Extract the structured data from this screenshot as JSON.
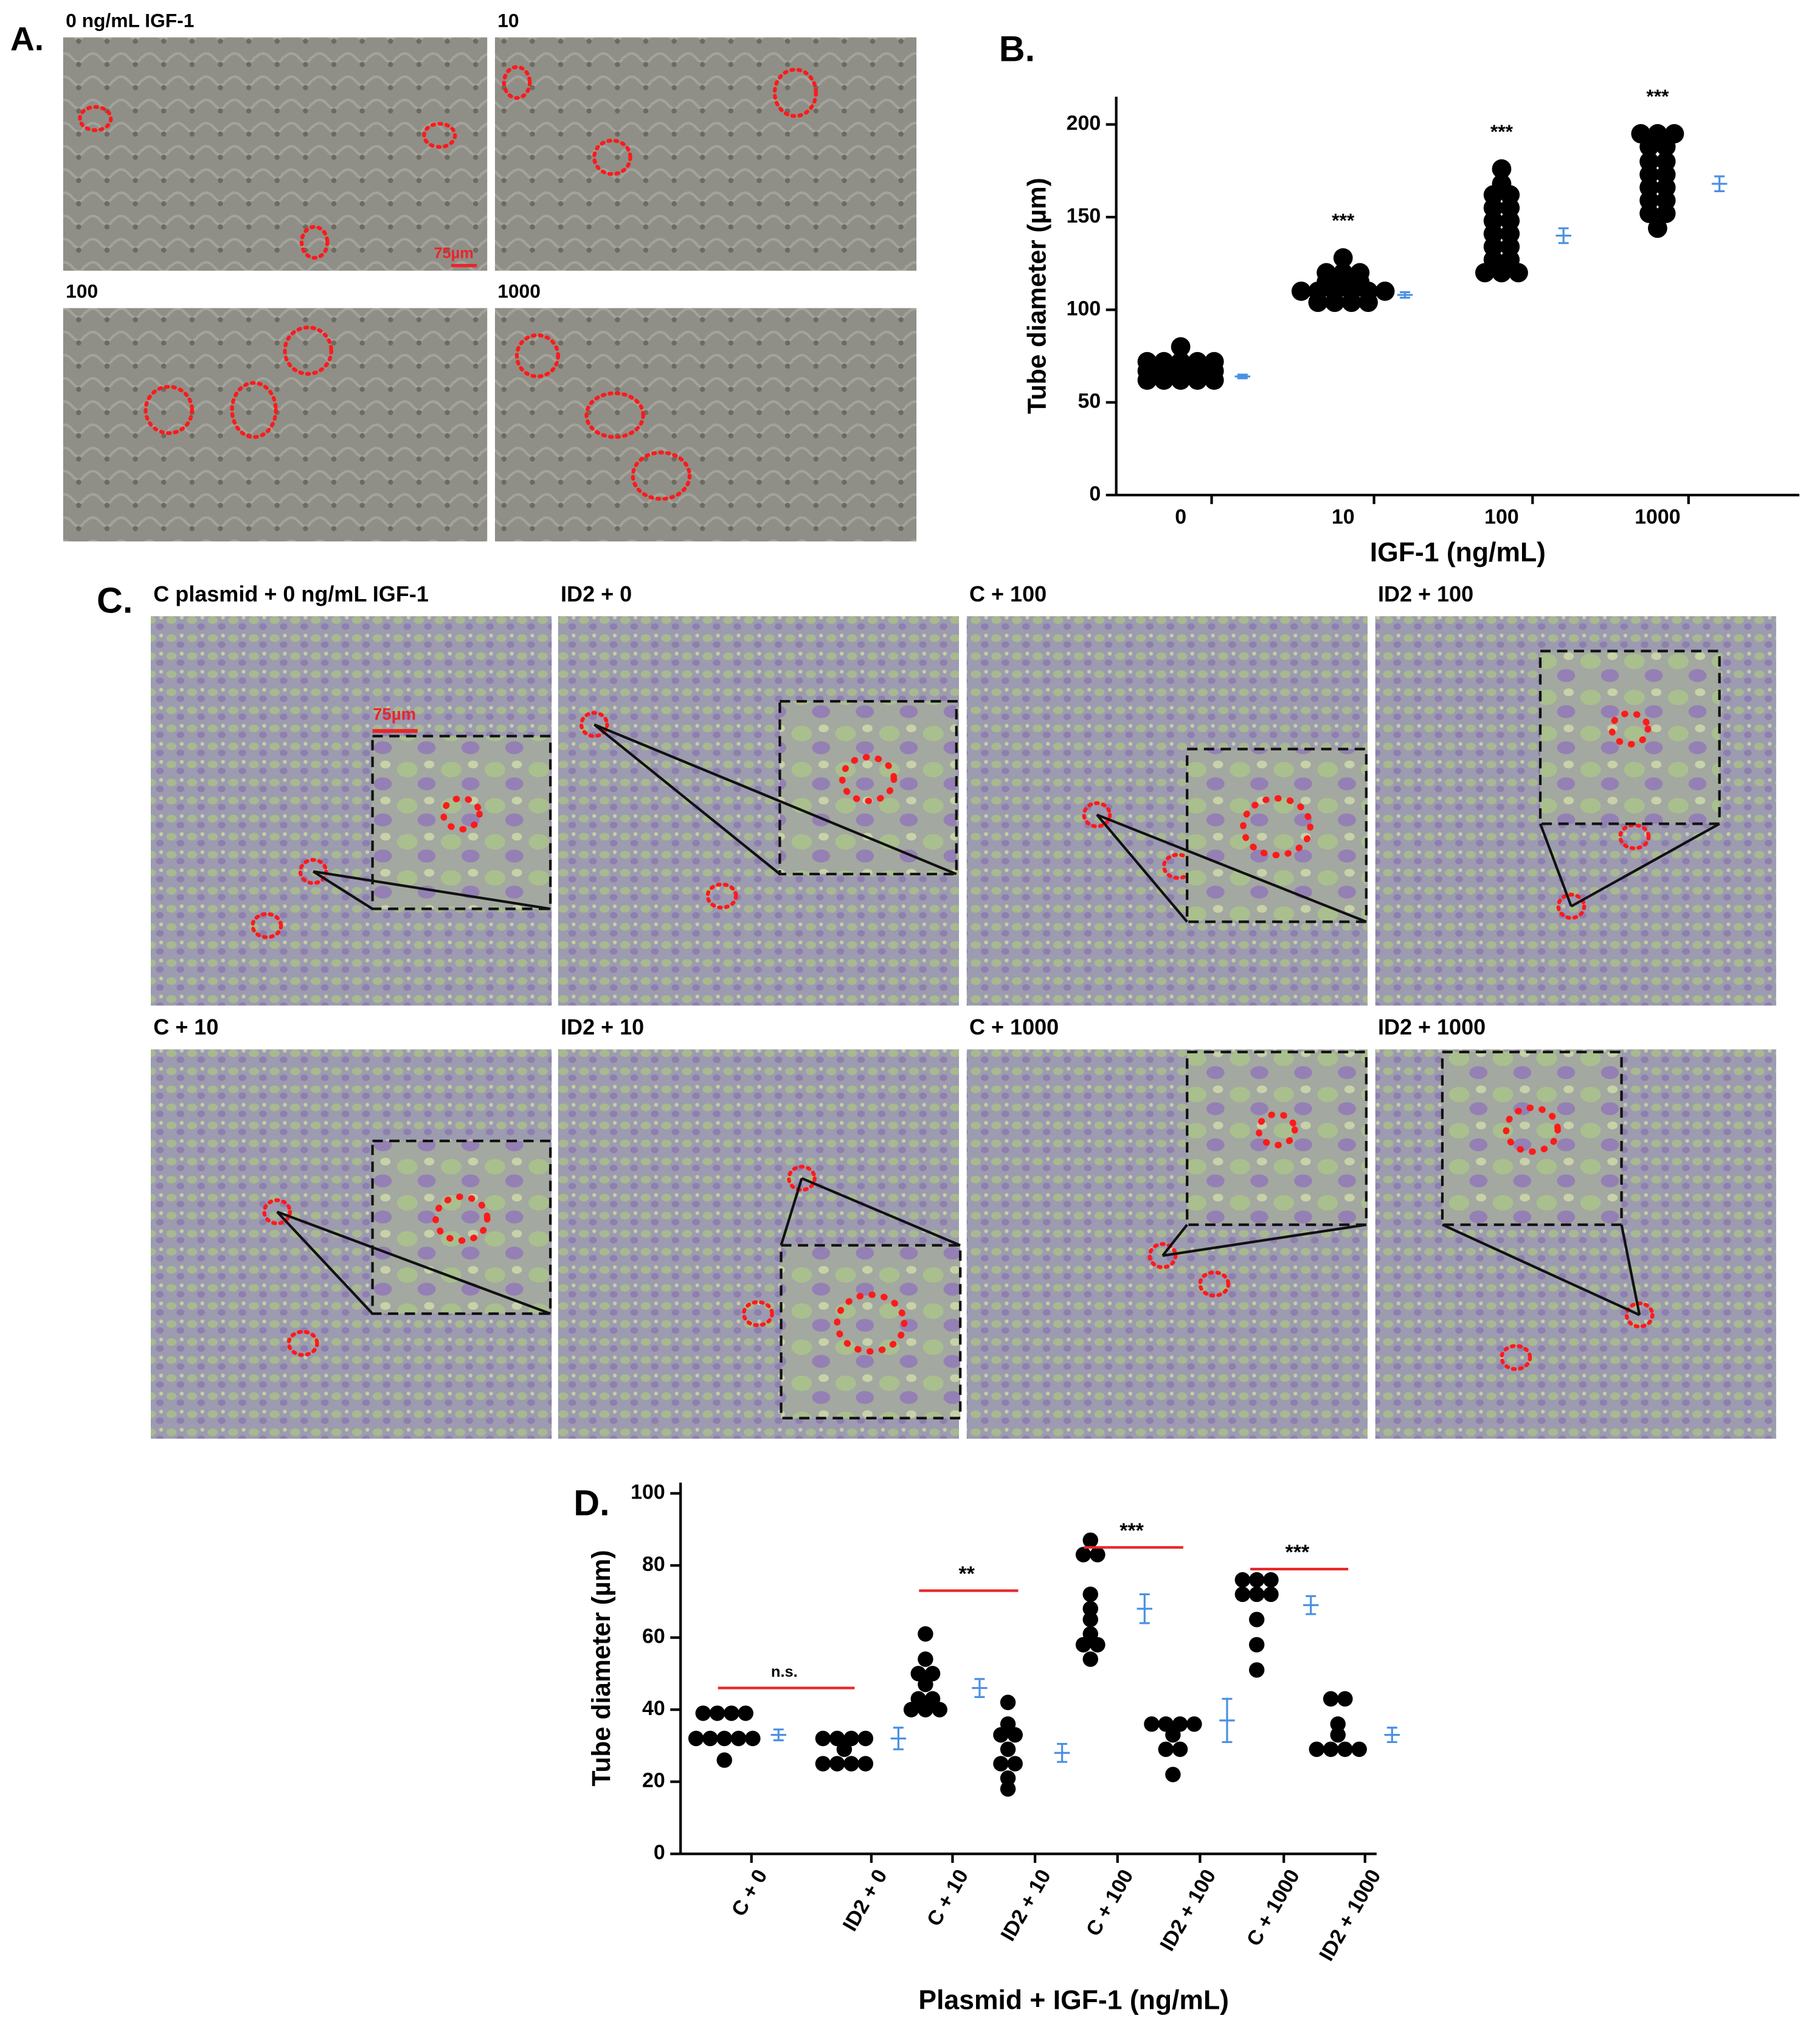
{
  "panel_a": {
    "label": "A.",
    "titles": [
      "0 ng/mL IGF-1",
      "10",
      "100",
      "1000"
    ],
    "scale_bar": "75µm"
  },
  "panel_c": {
    "label": "C.",
    "titles": [
      "C plasmid + 0 ng/mL IGF-1",
      "ID2 + 0",
      "C + 100",
      "ID2 + 100",
      "C + 10",
      "ID2 + 10",
      "C + 1000",
      "ID2 + 1000"
    ],
    "scale_bar": "75µm"
  },
  "chart_data": [
    {
      "type": "strip",
      "panel": "B.",
      "y_label": "Tube diameter (µm)",
      "x_label": "IGF-1 (ng/mL)",
      "categories": [
        "0",
        "10",
        "100",
        "1000"
      ],
      "points": [
        [
          80,
          72,
          72,
          72,
          72,
          72,
          67,
          67,
          67,
          67,
          67,
          62,
          62,
          62,
          62,
          62
        ],
        [
          128,
          120,
          120,
          120,
          115,
          115,
          115,
          110,
          110,
          110,
          110,
          110,
          110,
          104,
          104,
          104,
          104
        ],
        [
          176,
          168,
          162,
          162,
          155,
          155,
          148,
          148,
          141,
          141,
          134,
          134,
          127,
          127,
          120,
          120,
          120
        ],
        [
          195,
          195,
          195,
          188,
          188,
          180,
          180,
          173,
          173,
          166,
          166,
          159,
          159,
          152,
          152,
          144
        ]
      ],
      "color": "#000000",
      "means": [
        64,
        108,
        140,
        168
      ],
      "errors": [
        1,
        1.5,
        4,
        4
      ],
      "mean_color": "#4a90e2",
      "annotations": [
        null,
        "***",
        "***",
        "***"
      ],
      "annotation_color": "#e8262a",
      "ylim": [
        0,
        215
      ],
      "yticks": [
        0,
        50,
        100,
        150,
        200
      ]
    },
    {
      "type": "strip",
      "panel": "D.",
      "y_label": "Tube diameter (µm)",
      "x_label": "Plasmid + IGF-1 (ng/mL)",
      "categories": [
        "C + 0",
        "ID2 + 0",
        "C + 10",
        "ID2 + 10",
        "C + 100",
        "ID2 + 100",
        "C + 1000",
        "ID2 + 1000"
      ],
      "points": [
        [
          39,
          39,
          39,
          39,
          32,
          32,
          32,
          32,
          32,
          26
        ],
        [
          32,
          32,
          32,
          32,
          29,
          25,
          25,
          25,
          25
        ],
        [
          61,
          54,
          50,
          50,
          47,
          43,
          43,
          40,
          40,
          40
        ],
        [
          42,
          36,
          33,
          33,
          29,
          25,
          25,
          21,
          18
        ],
        [
          87,
          83,
          83,
          72,
          68,
          65,
          61,
          58,
          58,
          54
        ],
        [
          36,
          36,
          36,
          36,
          33,
          29,
          29,
          22
        ],
        [
          76,
          76,
          76,
          72,
          72,
          72,
          65,
          58,
          51
        ],
        [
          43,
          43,
          36,
          33,
          29,
          29,
          29,
          29
        ]
      ],
      "color": "#000000",
      "means": [
        33,
        32,
        46,
        28,
        68,
        37,
        69,
        33
      ],
      "errors": [
        1.5,
        3,
        2.5,
        2.5,
        4,
        6,
        2.5,
        2
      ],
      "mean_color": "#4a90e2",
      "brackets": [
        {
          "text": "n.s.",
          "pair": [
            0,
            1
          ],
          "y": 46
        },
        {
          "text": "**",
          "pair": [
            2,
            3
          ],
          "y": 73
        },
        {
          "text": "***",
          "pair": [
            4,
            5
          ],
          "y": 85
        },
        {
          "text": "***",
          "pair": [
            6,
            7
          ],
          "y": 79
        }
      ],
      "annotation_color": "#e8262a",
      "ylim": [
        0,
        103
      ],
      "yticks": [
        0,
        20,
        40,
        60,
        80,
        100
      ]
    }
  ]
}
